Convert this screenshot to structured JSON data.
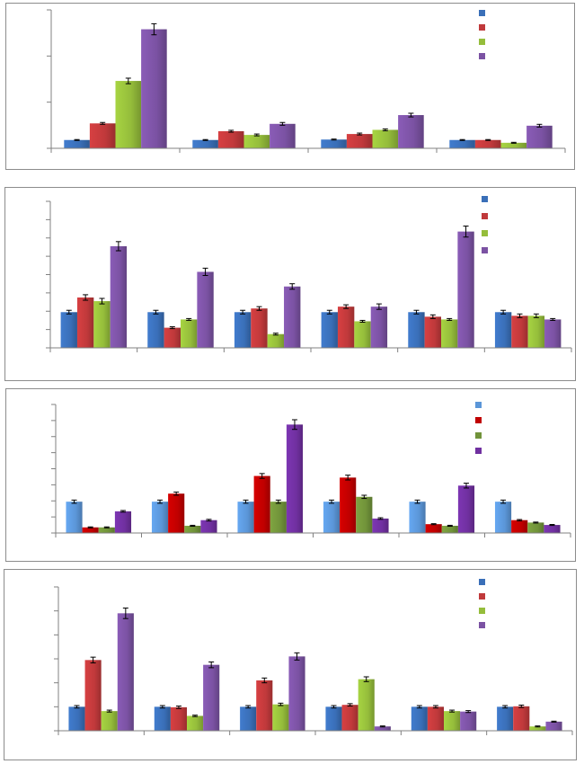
{
  "chart_data": [
    {
      "type": "bar",
      "categories": [
        "",
        "",
        "",
        ""
      ],
      "ylim": [
        0,
        3
      ],
      "yticks": [
        0,
        1,
        2,
        3
      ],
      "grid": false,
      "legend_placement": "top-right",
      "series": [
        {
          "color": "#3a6fb8",
          "values": [
            0.18,
            0.18,
            0.19,
            0.18
          ],
          "errors": [
            0.01,
            0.01,
            0.01,
            0.01
          ]
        },
        {
          "color": "#c0393b",
          "values": [
            0.54,
            0.37,
            0.31,
            0.18
          ],
          "errors": [
            0.02,
            0.02,
            0.02,
            0.01
          ]
        },
        {
          "color": "#95bd3b",
          "values": [
            1.46,
            0.29,
            0.4,
            0.12
          ],
          "errors": [
            0.06,
            0.02,
            0.02,
            0.01
          ]
        },
        {
          "color": "#7b52a3",
          "values": [
            2.58,
            0.53,
            0.72,
            0.49
          ],
          "errors": [
            0.12,
            0.03,
            0.04,
            0.03
          ]
        }
      ]
    },
    {
      "type": "bar",
      "categories": [
        "",
        "",
        "",
        "",
        "",
        ""
      ],
      "ylim": [
        0,
        8
      ],
      "yticks": [
        0,
        1,
        2,
        3,
        4,
        5,
        6,
        7,
        8
      ],
      "grid": false,
      "legend_placement": "top-right",
      "series": [
        {
          "color": "#3a6fb8",
          "values": [
            1.95,
            1.95,
            1.95,
            1.95,
            1.95,
            1.95
          ],
          "errors": [
            0.1,
            0.1,
            0.1,
            0.1,
            0.1,
            0.1
          ]
        },
        {
          "color": "#c0393b",
          "values": [
            2.75,
            1.1,
            2.15,
            2.25,
            1.7,
            1.75
          ],
          "errors": [
            0.15,
            0.05,
            0.1,
            0.1,
            0.1,
            0.1
          ]
        },
        {
          "color": "#95bd3b",
          "values": [
            2.55,
            1.55,
            0.75,
            1.45,
            1.55,
            1.75
          ],
          "errors": [
            0.15,
            0.05,
            0.05,
            0.05,
            0.05,
            0.1
          ]
        },
        {
          "color": "#7b52a3",
          "values": [
            5.55,
            4.15,
            3.35,
            2.25,
            6.35,
            1.55
          ],
          "errors": [
            0.25,
            0.2,
            0.15,
            0.15,
            0.3,
            0.05
          ]
        }
      ]
    },
    {
      "type": "bar",
      "categories": [
        "",
        "",
        "",
        "",
        "",
        ""
      ],
      "ylim": [
        0,
        8
      ],
      "yticks": [
        0,
        1,
        2,
        3,
        4,
        5,
        6,
        7,
        8
      ],
      "grid": false,
      "legend_placement": "top-right",
      "series": [
        {
          "color": "#5b96d8",
          "values": [
            1.95,
            1.95,
            1.95,
            1.95,
            1.95,
            1.95
          ],
          "errors": [
            0.1,
            0.1,
            0.1,
            0.1,
            0.1,
            0.1
          ]
        },
        {
          "color": "#c00000",
          "values": [
            0.35,
            2.45,
            3.55,
            3.45,
            0.55,
            0.8
          ],
          "errors": [
            0.03,
            0.1,
            0.15,
            0.15,
            0.03,
            0.04
          ]
        },
        {
          "color": "#71933a",
          "values": [
            0.35,
            0.45,
            1.95,
            2.25,
            0.45,
            0.65
          ],
          "errors": [
            0.03,
            0.03,
            0.1,
            0.1,
            0.03,
            0.03
          ]
        },
        {
          "color": "#7030a0",
          "values": [
            1.35,
            0.8,
            6.75,
            0.9,
            2.95,
            0.5
          ],
          "errors": [
            0.05,
            0.05,
            0.3,
            0.05,
            0.15,
            0.03
          ]
        }
      ]
    },
    {
      "type": "bar",
      "categories": [
        "",
        "",
        "",
        "",
        "",
        ""
      ],
      "ylim": [
        0,
        6
      ],
      "yticks": [
        0,
        1,
        2,
        3,
        4,
        5,
        6
      ],
      "grid": false,
      "legend_placement": "top-right",
      "series": [
        {
          "color": "#3a6fb8",
          "values": [
            1.0,
            1.0,
            1.0,
            1.0,
            1.0,
            1.0
          ],
          "errors": [
            0.05,
            0.05,
            0.05,
            0.05,
            0.05,
            0.05
          ]
        },
        {
          "color": "#c0393b",
          "values": [
            2.95,
            0.98,
            2.1,
            1.08,
            1.0,
            1.02
          ],
          "errors": [
            0.12,
            0.05,
            0.1,
            0.05,
            0.05,
            0.05
          ]
        },
        {
          "color": "#95bd3b",
          "values": [
            0.82,
            0.62,
            1.1,
            2.15,
            0.82,
            0.18
          ],
          "errors": [
            0.04,
            0.03,
            0.05,
            0.1,
            0.04,
            0.02
          ]
        },
        {
          "color": "#7b52a3",
          "values": [
            4.9,
            2.75,
            3.1,
            0.18,
            0.8,
            0.38
          ],
          "errors": [
            0.22,
            0.12,
            0.15,
            0.02,
            0.04,
            0.02
          ]
        }
      ]
    }
  ]
}
